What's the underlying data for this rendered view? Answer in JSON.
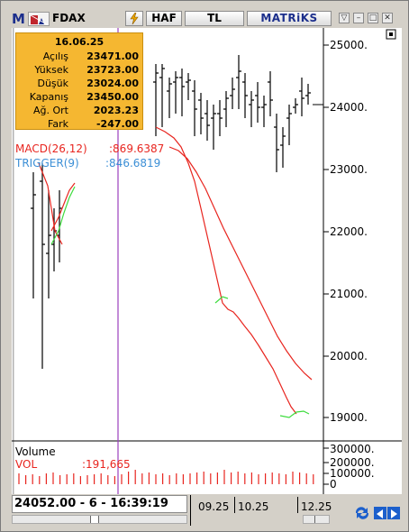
{
  "toolbar": {
    "menu_letter": "M",
    "symbol": "FDAX",
    "flash_icon": "lightning-icon",
    "period": "HAF",
    "currency": "TL",
    "brand": "MATRiKS"
  },
  "info_box": {
    "date": "16.06.25",
    "rows": [
      {
        "label": "Açılış",
        "value": "23471.00"
      },
      {
        "label": "Yüksek",
        "value": "23723.00"
      },
      {
        "label": "Düşük",
        "value": "23024.00"
      },
      {
        "label": "Kapanış",
        "value": "23450.00"
      },
      {
        "label": "Ağ. Ort",
        "value": "2023.23"
      },
      {
        "label": "Fark",
        "value": "-247.00"
      }
    ]
  },
  "indicators": {
    "macd_label": "MACD(26,12)",
    "macd_value": ":869.6387",
    "trigger_label": "TRIGGER(9)",
    "trigger_value": ":846.6819"
  },
  "price_axis": [
    "25000.",
    "24000.",
    "23000.",
    "22000.",
    "21000.",
    "20000.",
    "19000."
  ],
  "volume_panel": {
    "title": "Volume",
    "vol_label": "VOL",
    "vol_value": ":191,665",
    "axis": [
      "300000.",
      "200000.",
      "100000.",
      "0"
    ]
  },
  "status": {
    "readout": "24052.00 - 6 - 16:39:19",
    "time_labels": [
      "09.25",
      "10.25",
      "12.25"
    ]
  },
  "colors": {
    "macd": "#e8251f",
    "trigger": "#3ddc3d",
    "crosshair": "#9b3fbf",
    "info_bg": "#f5b731",
    "trigger_text": "#3c8fd6"
  }
}
